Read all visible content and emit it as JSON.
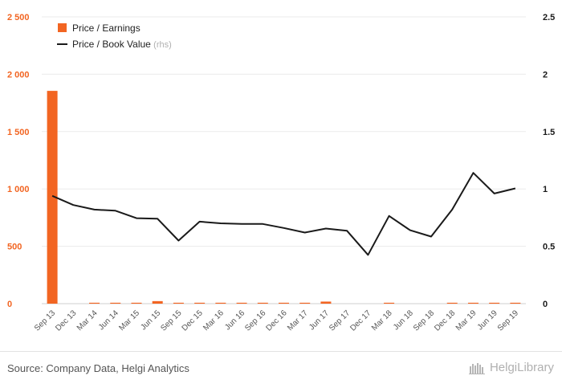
{
  "chart_data": {
    "type": "bar",
    "categories": [
      "Sep 13",
      "Dec 13",
      "Mar 14",
      "Jun 14",
      "Mar 15",
      "Jun 15",
      "Sep 15",
      "Dec 15",
      "Mar 16",
      "Jun 16",
      "Sep 16",
      "Dec 16",
      "Mar 17",
      "Jun 17",
      "Sep 17",
      "Dec 17",
      "Mar 18",
      "Jun 18",
      "Sep 18",
      "Dec 18",
      "Mar 19",
      "Jun 19",
      "Sep 19"
    ],
    "series": [
      {
        "name": "Price / Earnings",
        "type": "bar",
        "axis": "left",
        "color": "#f26522",
        "values": [
          1855,
          0,
          8,
          8,
          8,
          22,
          8,
          8,
          8,
          8,
          8,
          8,
          8,
          18,
          0,
          0,
          8,
          0,
          0,
          8,
          8,
          8,
          8
        ]
      },
      {
        "name": "Price / Book Value",
        "name_suffix": "(rhs)",
        "type": "line",
        "axis": "right",
        "color": "#1a1a1a",
        "values": [
          0.94,
          0.86,
          0.82,
          0.81,
          0.745,
          0.74,
          0.55,
          0.715,
          0.7,
          0.695,
          0.695,
          0.66,
          0.62,
          0.655,
          0.635,
          0.425,
          0.765,
          0.64,
          0.585,
          0.82,
          1.14,
          0.96,
          1.005
        ]
      }
    ],
    "left_axis": {
      "ticks": [
        "0",
        "500",
        "1 000",
        "1 500",
        "2 000",
        "2 500"
      ],
      "tick_values": [
        0,
        500,
        1000,
        1500,
        2000,
        2500
      ],
      "ylim": [
        0,
        2500
      ],
      "color": "#f26522"
    },
    "right_axis": {
      "ticks": [
        "0",
        "0.5",
        "1",
        "1.5",
        "2",
        "2.5"
      ],
      "tick_values": [
        0,
        0.5,
        1,
        1.5,
        2,
        2.5
      ],
      "ylim": [
        0,
        2.5
      ],
      "color": "#1a1a1a"
    },
    "grid": true,
    "legend_position": "top-left"
  },
  "footer": {
    "source": "Source: Company Data, Helgi Analytics",
    "brand_name": "HelgiLibrary"
  }
}
